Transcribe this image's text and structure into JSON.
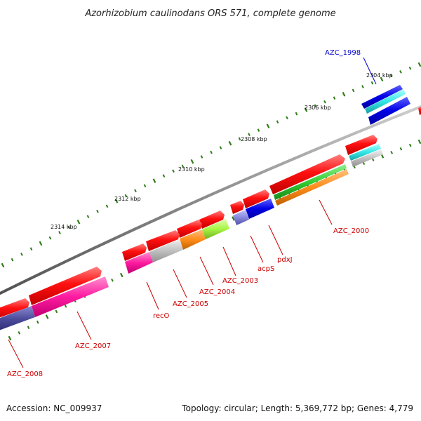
{
  "title": "Azorhizobium caulinodans ORS 571, complete genome",
  "accession": "Accession: NC_009937",
  "summary": "Topology: circular; Length: 5,369,772 bp; Genes: 4,779",
  "scale_labels": [
    "2304 kbp",
    "2306 kbp",
    "2308 kbp",
    "2310 kbp",
    "2312 kbp",
    "2314 kbp"
  ],
  "gene_labels": {
    "azc_1998": "AZC_1998",
    "azc_2000": "AZC_2000",
    "pdxj": "pdxJ",
    "acps": "acpS",
    "azc_2003": "AZC_2003",
    "azc_2004": "AZC_2004",
    "azc_2005": "AZC_2005",
    "reco": "recO",
    "azc_2007": "AZC_2007",
    "azc_2008": "AZC_2008"
  },
  "colors": {
    "backbone": "#8a8a8a",
    "cds_forward": "#ff0000",
    "tick": "#2e7d1a",
    "label_red": "#cc0000",
    "label_blue": "#0000cc",
    "cog_blue": "#0000e6",
    "cog_cyan": "#33e6e6",
    "cog_magenta": "#ff1aa0",
    "cog_navy": "#4a4a9a",
    "cog_orange": "#ff8c1a",
    "cog_green": "#33cc33",
    "cog_lime": "#a6f542",
    "cog_grey": "#c0c0c0",
    "cog_lavender": "#8888dd"
  }
}
